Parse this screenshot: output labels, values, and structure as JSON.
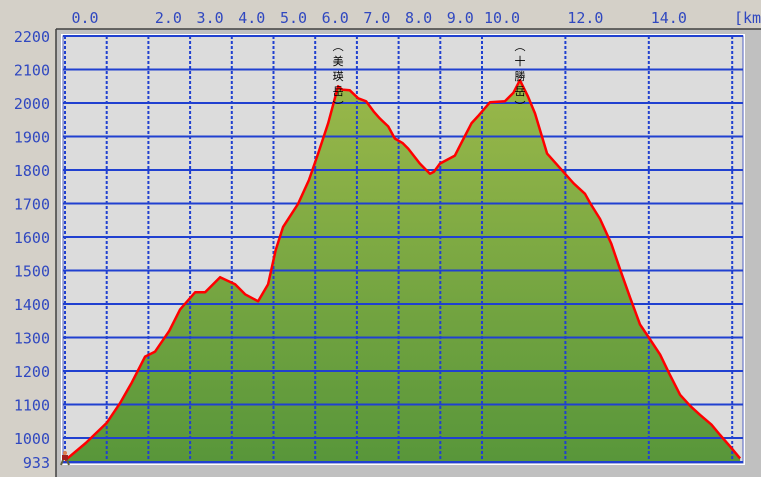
{
  "chart_data": {
    "type": "area",
    "title": "",
    "xlabel": "",
    "xunit": "[km]",
    "ylabel": "",
    "xlim": [
      0,
      16.25
    ],
    "ylim": [
      933,
      2200
    ],
    "grid": true,
    "x_tick_labels": [
      "0.0",
      "2.0",
      "3.0",
      "4.0",
      "5.0",
      "6.0",
      "7.0",
      "8.0",
      "9.0",
      "10.0",
      "12.0",
      "14.0"
    ],
    "x_gridlines": [
      0,
      1,
      2,
      3,
      4,
      5,
      6,
      7,
      8,
      9,
      10,
      12,
      14,
      16
    ],
    "y_ticks": [
      933,
      1000,
      1100,
      1200,
      1300,
      1400,
      1500,
      1600,
      1700,
      1800,
      1900,
      2000,
      2100,
      2200
    ],
    "colors": {
      "line": "#ff0000",
      "fill_top": "#9ab84a",
      "fill_bottom": "#58963a",
      "grid": "#2040d0",
      "plot_bg": "#dcdcdc",
      "tick_text": "#3048c0"
    },
    "peaks": [
      {
        "name": "(美瑛岳)",
        "x": 6.55,
        "elev": 2050
      },
      {
        "name": "(十勝岳)",
        "x": 10.91,
        "elev": 2068
      }
    ],
    "start_marker_icon": "hiker-icon",
    "x": [
      0,
      0.5,
      1.0,
      1.32,
      1.6,
      1.92,
      2.16,
      2.5,
      2.76,
      3.12,
      3.36,
      3.72,
      4.08,
      4.32,
      4.63,
      4.87,
      5.05,
      5.23,
      5.59,
      5.85,
      6.07,
      6.31,
      6.55,
      6.65,
      6.83,
      7.03,
      7.22,
      7.4,
      7.55,
      7.75,
      7.91,
      8.1,
      8.23,
      8.51,
      8.75,
      8.85,
      8.99,
      9.35,
      9.5,
      9.62,
      9.75,
      9.9,
      10.19,
      10.55,
      10.75,
      10.91,
      11.1,
      11.27,
      11.56,
      11.99,
      12.2,
      12.47,
      12.6,
      12.83,
      13.1,
      13.31,
      13.55,
      13.79,
      14.0,
      14.27,
      14.5,
      14.75,
      15.0,
      15.23,
      15.5,
      15.71,
      15.95,
      16.19
    ],
    "y": [
      933,
      985,
      1045,
      1104,
      1165,
      1243,
      1258,
      1320,
      1384,
      1435,
      1435,
      1480,
      1459,
      1429,
      1408,
      1459,
      1560,
      1630,
      1699,
      1770,
      1849,
      1939,
      2050,
      2040,
      2038,
      2014,
      2005,
      1975,
      1954,
      1930,
      1894,
      1880,
      1864,
      1819,
      1789,
      1795,
      1819,
      1843,
      1880,
      1909,
      1940,
      1960,
      2002,
      2005,
      2030,
      2068,
      2020,
      1969,
      1849,
      1789,
      1760,
      1729,
      1700,
      1654,
      1580,
      1504,
      1420,
      1339,
      1300,
      1249,
      1190,
      1129,
      1095,
      1069,
      1040,
      1009,
      975,
      939
    ]
  }
}
